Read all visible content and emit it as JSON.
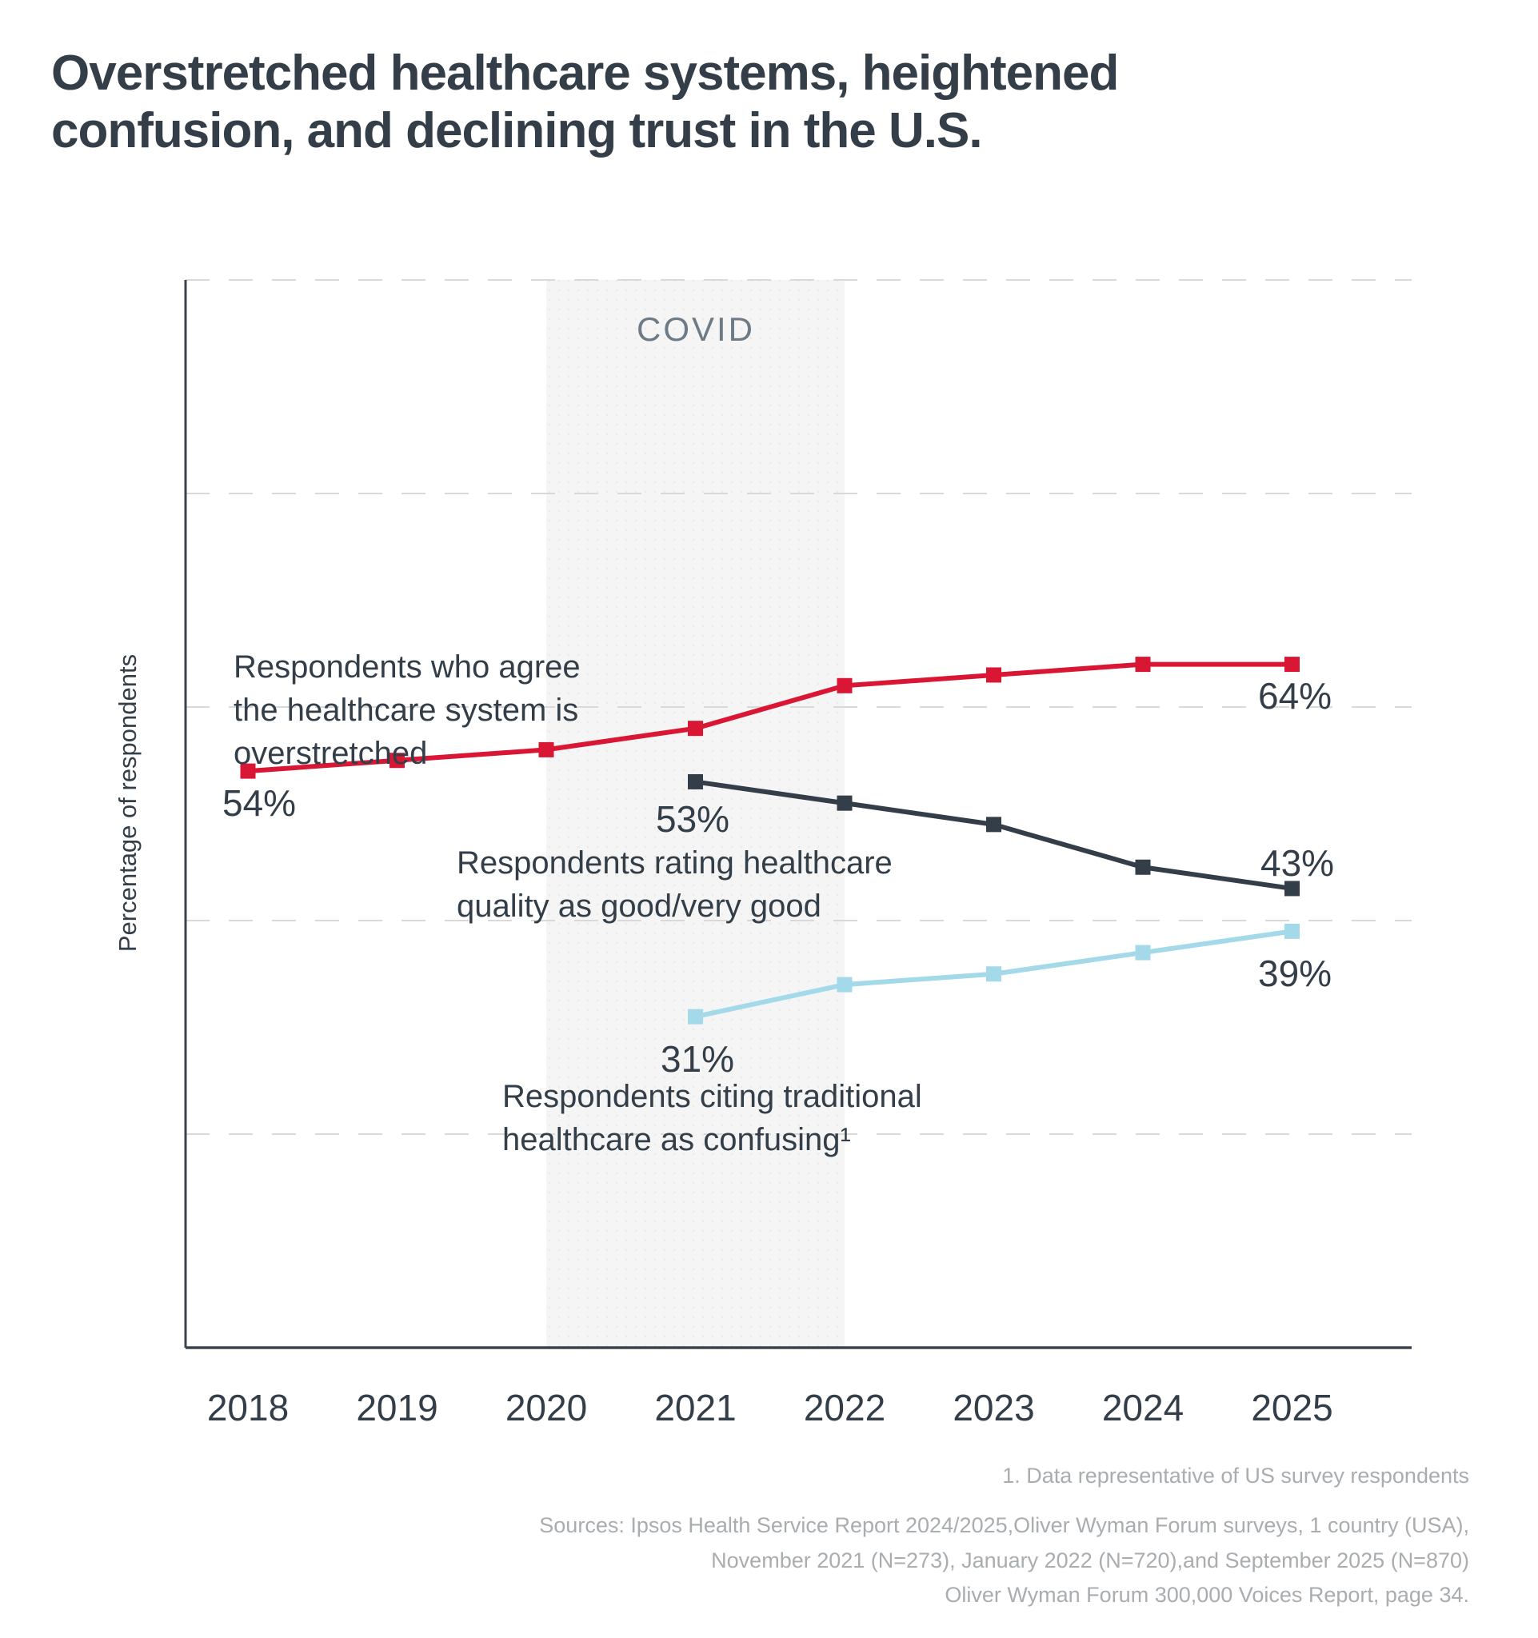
{
  "title": "Overstretched healthcare systems, heightened\nconfusion, and declining trust in the U.S.",
  "colors": {
    "title_text": "#333E48",
    "series_red": "#D91734",
    "series_dark": "#333E48",
    "series_light_blue": "#A3D9E8",
    "covid_band": "#F5F5F6",
    "covid_band_dots": "#EBEBEC",
    "covid_text": "#6E7A85",
    "gridline": "#D9D9D9",
    "axis": "#3A444D",
    "footnote_text": "#A9ADB0"
  },
  "chart_data": {
    "type": "line",
    "x": [
      2018,
      2019,
      2020,
      2021,
      2022,
      2023,
      2024,
      2025
    ],
    "xlabel": "",
    "ylabel": "Percentage of respondents",
    "ylim": [
      0,
      100
    ],
    "gridlines_percent": [
      20,
      40,
      60,
      80,
      100
    ],
    "grid_style": "dashed",
    "covid_band": {
      "label": "COVID",
      "x_start": 2020,
      "x_end": 2022
    },
    "series": [
      {
        "name": "Respondents who agree the healthcare system is overstretched",
        "color": "#D91734",
        "x": [
          2018,
          2019,
          2020,
          2021,
          2022,
          2023,
          2024,
          2025
        ],
        "values": [
          54,
          55,
          56,
          58,
          62,
          63,
          64,
          64
        ],
        "first_point_label": "54%",
        "last_point_label": "64%"
      },
      {
        "name": "Respondents rating healthcare quality as good/very good",
        "color": "#333E48",
        "x": [
          2021,
          2022,
          2023,
          2024,
          2025
        ],
        "values": [
          53,
          51,
          49,
          45,
          43
        ],
        "first_point_label": "53%",
        "last_point_label": "43%"
      },
      {
        "name": "Respondents citing traditional healthcare as confusing¹",
        "color": "#A3D9E8",
        "x": [
          2021,
          2022,
          2023,
          2024,
          2025
        ],
        "values": [
          31,
          34,
          35,
          37,
          39
        ],
        "first_point_label": "31%",
        "last_point_label": "39%"
      }
    ]
  },
  "annotations": {
    "covid": "COVID",
    "ylabel": "Percentage of respondents",
    "series1_label": "Respondents who agree\nthe healthcare system is\noverstretched",
    "series1_first": "54%",
    "series1_last": "64%",
    "series2_label": "Respondents rating healthcare\nquality as good/very good",
    "series2_first": "53%",
    "series2_last": "43%",
    "series3_label": "Respondents citing traditional\nhealthcare as confusing¹",
    "series3_first": "31%",
    "series3_last": "39%"
  },
  "footnotes": {
    "note1": "1. Data representative of US survey respondents",
    "sources": "Sources: Ipsos Health Service Report 2024/2025,Oliver Wyman Forum surveys, 1 country (USA),\nNovember 2021 (N=273), January 2022 (N=720),and September 2025 (N=870)\nOliver Wyman Forum 300,000 Voices Report, page 34."
  }
}
